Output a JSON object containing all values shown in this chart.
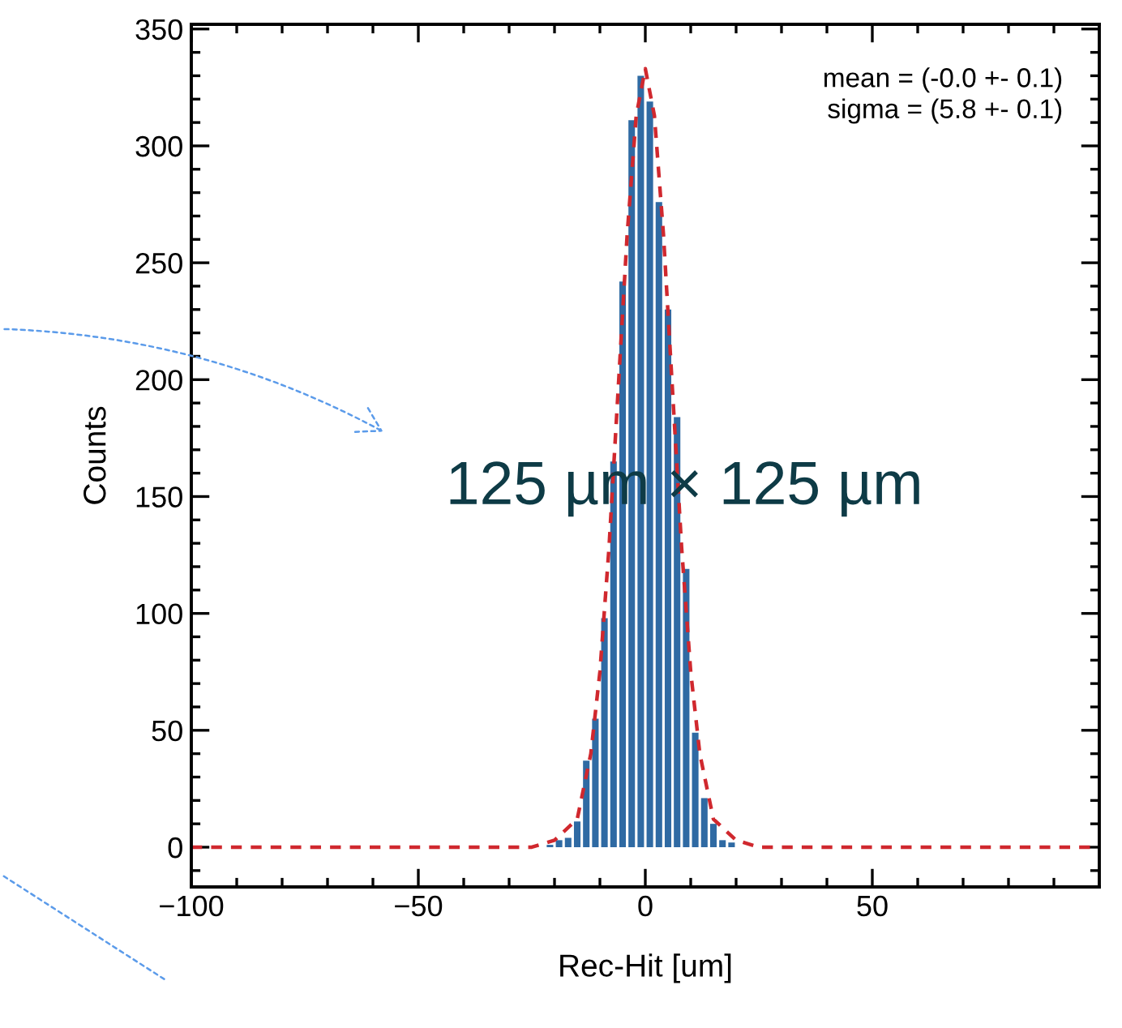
{
  "chart_data": {
    "type": "histogram",
    "xlabel": "Rec-Hit [um]",
    "ylabel": "Counts",
    "bins": [
      -22,
      -20,
      -18,
      -16,
      -14,
      -12,
      -10,
      -8,
      -6,
      -4,
      -2,
      0,
      2,
      4,
      6,
      8,
      10,
      12,
      14,
      16,
      18,
      20
    ],
    "values": [
      1,
      3,
      4,
      11,
      37,
      55,
      98,
      165,
      242,
      311,
      330,
      319,
      276,
      230,
      184,
      119,
      49,
      21,
      10,
      3,
      2
    ],
    "color": "#2f6aa3",
    "series": [
      {
        "type": "line",
        "color": "#d0282e",
        "line_style": "dashed",
        "x": [
          -100,
          -25,
          -20,
          -15,
          -12,
          -10,
          -8,
          -6,
          -4,
          -2,
          0,
          2,
          4,
          6,
          8,
          10,
          12,
          15,
          20,
          25,
          100
        ],
        "values": [
          0,
          0,
          3,
          12,
          40,
          75,
          128,
          195,
          262,
          313,
          333,
          313,
          262,
          195,
          128,
          75,
          40,
          12,
          3,
          0,
          0
        ]
      }
    ],
    "xlim": [
      -100,
      100
    ],
    "xticks": [
      -100,
      {
        "value": -90,
        "label": null
      },
      {
        "value": -80,
        "label": null
      },
      {
        "value": -70,
        "label": null
      },
      {
        "value": -60,
        "label": null
      },
      {
        "value": -50,
        "label": "−50"
      },
      {
        "value": -40,
        "label": null
      },
      {
        "value": -30,
        "label": null
      },
      {
        "value": -20,
        "label": null
      },
      {
        "value": -10,
        "label": null
      },
      0,
      {
        "value": 10,
        "label": null
      },
      {
        "value": 20,
        "label": null
      },
      {
        "value": 30,
        "label": null
      },
      {
        "value": 40,
        "label": null
      },
      50,
      {
        "value": 60,
        "label": null
      },
      {
        "value": 70,
        "label": null
      },
      {
        "value": 80,
        "label": null
      },
      {
        "value": 90,
        "label": null
      }
    ],
    "ylim": [
      -17,
      352
    ],
    "yticks": [
      {
        "value": -10,
        "label": null
      },
      0,
      {
        "value": 10,
        "label": null
      },
      {
        "value": 20,
        "label": null
      },
      {
        "value": 30,
        "label": null
      },
      {
        "value": 40,
        "label": null
      },
      50,
      {
        "value": 60,
        "label": null
      },
      {
        "value": 70,
        "label": null
      },
      {
        "value": 80,
        "label": null
      },
      {
        "value": 90,
        "label": null
      },
      100,
      {
        "value": 110,
        "label": null
      },
      {
        "value": 120,
        "label": null
      },
      {
        "value": 130,
        "label": null
      },
      {
        "value": 140,
        "label": null
      },
      150,
      {
        "value": 160,
        "label": null
      },
      {
        "value": 170,
        "label": null
      },
      {
        "value": 180,
        "label": null
      },
      {
        "value": 190,
        "label": null
      },
      200,
      {
        "value": 210,
        "label": null
      },
      {
        "value": 220,
        "label": null
      },
      {
        "value": 230,
        "label": null
      },
      {
        "value": 240,
        "label": null
      },
      250,
      {
        "value": 260,
        "label": null
      },
      {
        "value": 270,
        "label": null
      },
      {
        "value": 280,
        "label": null
      },
      {
        "value": 290,
        "label": null
      },
      300,
      {
        "value": 310,
        "label": null
      },
      {
        "value": 320,
        "label": null
      },
      {
        "value": 330,
        "label": null
      },
      {
        "value": 340,
        "label": null
      },
      350
    ],
    "annotations": [
      "mean = (-0.0 +- 0.1)\nsigma = (5.8 +- 0.1)",
      "125 µm × 125 µm"
    ],
    "grid": false,
    "legend": false
  }
}
